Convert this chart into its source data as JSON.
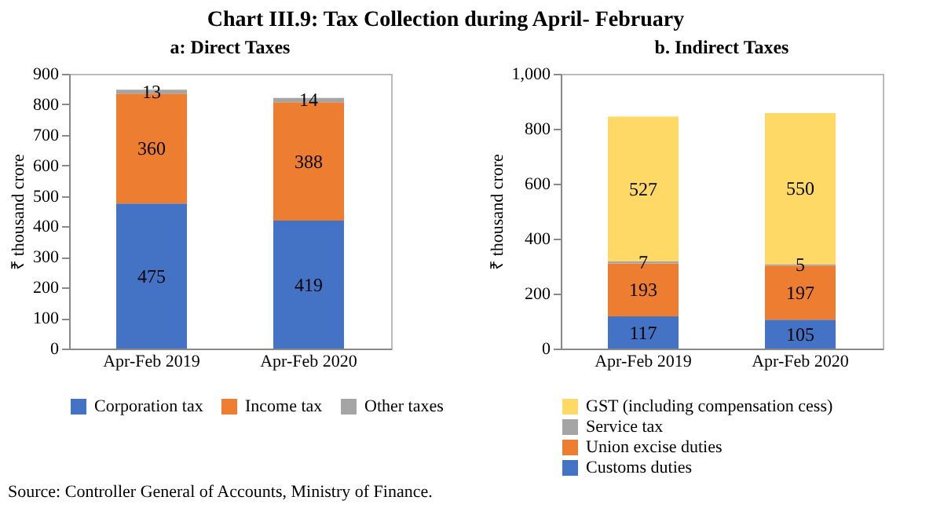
{
  "chart_data": [
    {
      "type": "bar",
      "title": "Chart III.9: Tax Collection during April- February",
      "subtitle": "a: Direct Taxes",
      "ylabel": "₹ thousand crore",
      "categories": [
        "Apr-Feb 2019",
        "Apr-Feb 2020"
      ],
      "stacked": true,
      "data_labels": true,
      "legend": "bottom",
      "grid": false,
      "ylim": [
        0,
        900
      ],
      "yticks": [
        0,
        100,
        200,
        300,
        400,
        500,
        600,
        700,
        800,
        900
      ],
      "series": [
        {
          "name": "Corporation tax",
          "color": "#4472c4",
          "values": [
            475,
            419
          ]
        },
        {
          "name": "Income tax",
          "color": "#ed7d31",
          "values": [
            360,
            388
          ]
        },
        {
          "name": "Other taxes",
          "color": "#a5a5a5",
          "values": [
            13,
            14
          ]
        }
      ]
    },
    {
      "type": "bar",
      "subtitle": "b. Indirect Taxes",
      "ylabel": "₹ thousand crore",
      "categories": [
        "Apr-Feb 2019",
        "Apr-Feb 2020"
      ],
      "stacked": true,
      "data_labels": true,
      "legend": "bottom left",
      "grid": false,
      "ylim": [
        0,
        1000
      ],
      "yticks": [
        0,
        200,
        400,
        600,
        800,
        {
          "value": 1000,
          "label": "1,000"
        }
      ],
      "annotations": [
        "Source: Controller General of Accounts, Ministry of Finance."
      ],
      "series": [
        {
          "name": "Customs duties",
          "color": "#4472c4",
          "values": [
            117,
            105
          ]
        },
        {
          "name": "Union excise duties",
          "color": "#ed7d31",
          "values": [
            193,
            197
          ]
        },
        {
          "name": "Service tax",
          "color": "#a5a5a5",
          "values": [
            7,
            5
          ]
        },
        {
          "name": "GST (including compensation cess)",
          "color": "#ffd966",
          "values": [
            527,
            550
          ]
        }
      ]
    }
  ]
}
